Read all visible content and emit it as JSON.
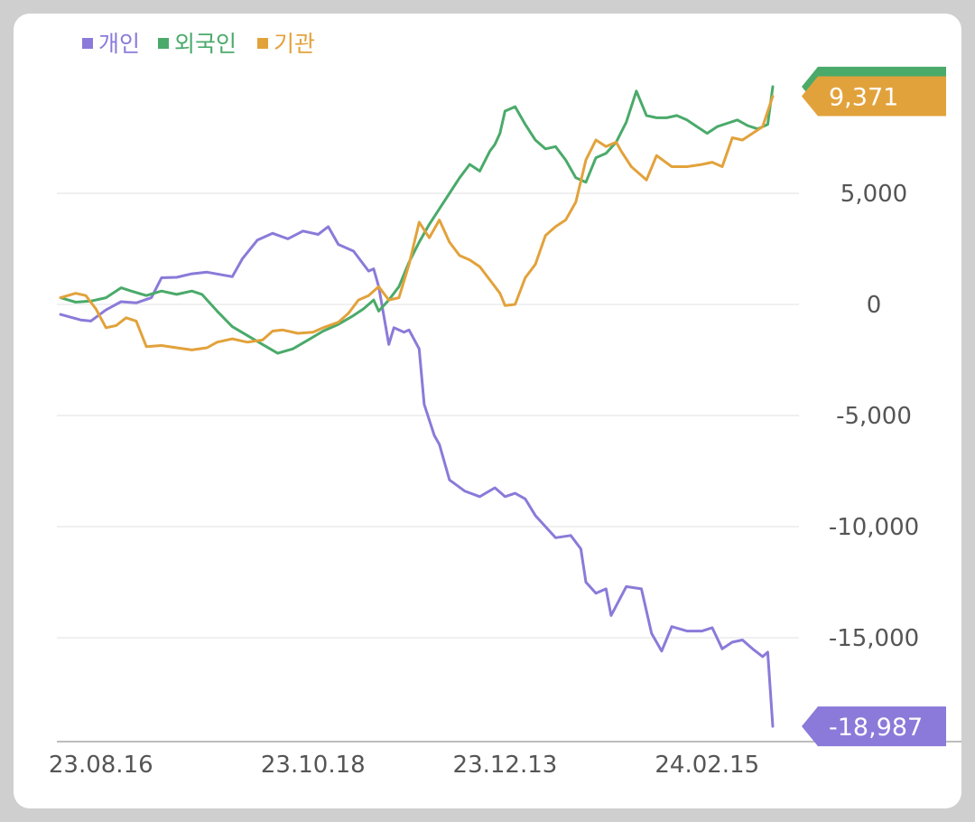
{
  "chart_data": {
    "type": "line",
    "title": "",
    "xlabel": "",
    "ylabel": "",
    "ylim": [
      -19500,
      10500
    ],
    "yticks": [
      {
        "value": 5000,
        "label": "5,000"
      },
      {
        "value": 0,
        "label": "0"
      },
      {
        "value": -5000,
        "label": "-5,000"
      },
      {
        "value": -10000,
        "label": "-10,000"
      },
      {
        "value": -15000,
        "label": "-15,000"
      }
    ],
    "x_tick_labels": [
      {
        "index": 8,
        "label": "23.08.16"
      },
      {
        "index": 50,
        "label": "23.10.18"
      },
      {
        "index": 88,
        "label": "23.12.13"
      },
      {
        "index": 128,
        "label": "24.02.15"
      }
    ],
    "grid": true,
    "legend_position": "top-left",
    "series": [
      {
        "name": "개인",
        "color": "#8b7ad9",
        "last_label": "-18,987",
        "points": [
          [
            0,
            -450
          ],
          [
            4,
            -700
          ],
          [
            6,
            -750
          ],
          [
            9,
            -250
          ],
          [
            12,
            120
          ],
          [
            15,
            70
          ],
          [
            18,
            300
          ],
          [
            20,
            1200
          ],
          [
            23,
            1220
          ],
          [
            26,
            1380
          ],
          [
            29,
            1450
          ],
          [
            32,
            1330
          ],
          [
            34,
            1250
          ],
          [
            36,
            2050
          ],
          [
            39,
            2900
          ],
          [
            42,
            3200
          ],
          [
            45,
            2950
          ],
          [
            48,
            3300
          ],
          [
            51,
            3150
          ],
          [
            53,
            3500
          ],
          [
            55,
            2700
          ],
          [
            58,
            2400
          ],
          [
            61,
            1500
          ],
          [
            62,
            1600
          ],
          [
            63,
            800
          ],
          [
            65,
            -1800
          ],
          [
            66,
            -1050
          ],
          [
            68,
            -1250
          ],
          [
            69,
            -1150
          ],
          [
            71,
            -2000
          ],
          [
            72,
            -4500
          ],
          [
            74,
            -5900
          ],
          [
            75,
            -6300
          ],
          [
            77,
            -7900
          ],
          [
            80,
            -8400
          ],
          [
            83,
            -8650
          ],
          [
            86,
            -8250
          ],
          [
            88,
            -8650
          ],
          [
            90,
            -8500
          ],
          [
            92,
            -8750
          ],
          [
            94,
            -9500
          ],
          [
            96,
            -10000
          ],
          [
            98,
            -10500
          ],
          [
            101,
            -10400
          ],
          [
            103,
            -11000
          ],
          [
            104,
            -12500
          ],
          [
            106,
            -13000
          ],
          [
            108,
            -12800
          ],
          [
            109,
            -14000
          ],
          [
            112,
            -12700
          ],
          [
            115,
            -12800
          ],
          [
            117,
            -14800
          ],
          [
            119,
            -15600
          ],
          [
            121,
            -14500
          ],
          [
            124,
            -14700
          ],
          [
            127,
            -14700
          ],
          [
            129,
            -14550
          ],
          [
            131,
            -15500
          ],
          [
            133,
            -15200
          ],
          [
            135,
            -15100
          ],
          [
            137,
            -15500
          ],
          [
            139,
            -15850
          ],
          [
            140,
            -15650
          ],
          [
            141,
            -18987
          ]
        ]
      },
      {
        "name": "외국인",
        "color": "#4aaa6a",
        "last_label": "",
        "points": [
          [
            0,
            300
          ],
          [
            3,
            100
          ],
          [
            6,
            150
          ],
          [
            9,
            300
          ],
          [
            12,
            750
          ],
          [
            14,
            600
          ],
          [
            17,
            400
          ],
          [
            20,
            600
          ],
          [
            23,
            450
          ],
          [
            26,
            600
          ],
          [
            28,
            450
          ],
          [
            31,
            -300
          ],
          [
            34,
            -1000
          ],
          [
            37,
            -1400
          ],
          [
            40,
            -1800
          ],
          [
            43,
            -2200
          ],
          [
            46,
            -2000
          ],
          [
            49,
            -1600
          ],
          [
            52,
            -1200
          ],
          [
            55,
            -900
          ],
          [
            58,
            -500
          ],
          [
            60,
            -200
          ],
          [
            62,
            200
          ],
          [
            63,
            -300
          ],
          [
            65,
            200
          ],
          [
            67,
            800
          ],
          [
            69,
            1900
          ],
          [
            71,
            2800
          ],
          [
            73,
            3600
          ],
          [
            75,
            4300
          ],
          [
            77,
            5000
          ],
          [
            79,
            5700
          ],
          [
            81,
            6300
          ],
          [
            83,
            6000
          ],
          [
            85,
            6900
          ],
          [
            86,
            7200
          ],
          [
            87,
            7700
          ],
          [
            88,
            8700
          ],
          [
            90,
            8900
          ],
          [
            92,
            8100
          ],
          [
            94,
            7400
          ],
          [
            96,
            7000
          ],
          [
            98,
            7100
          ],
          [
            100,
            6500
          ],
          [
            102,
            5700
          ],
          [
            104,
            5500
          ],
          [
            106,
            6600
          ],
          [
            108,
            6800
          ],
          [
            110,
            7300
          ],
          [
            112,
            8200
          ],
          [
            114,
            9600
          ],
          [
            116,
            8500
          ],
          [
            118,
            8400
          ],
          [
            120,
            8400
          ],
          [
            122,
            8500
          ],
          [
            124,
            8300
          ],
          [
            126,
            8000
          ],
          [
            128,
            7700
          ],
          [
            130,
            8000
          ],
          [
            132,
            8150
          ],
          [
            134,
            8300
          ],
          [
            136,
            8050
          ],
          [
            138,
            7900
          ],
          [
            140,
            8100
          ],
          [
            141,
            9800
          ]
        ]
      },
      {
        "name": "기관",
        "color": "#e2a23b",
        "last_label": "9,371",
        "points": [
          [
            0,
            300
          ],
          [
            3,
            500
          ],
          [
            5,
            400
          ],
          [
            7,
            -200
          ],
          [
            9,
            -1050
          ],
          [
            11,
            -950
          ],
          [
            13,
            -600
          ],
          [
            15,
            -750
          ],
          [
            17,
            -1900
          ],
          [
            20,
            -1850
          ],
          [
            23,
            -1950
          ],
          [
            26,
            -2050
          ],
          [
            29,
            -1950
          ],
          [
            31,
            -1700
          ],
          [
            34,
            -1550
          ],
          [
            37,
            -1700
          ],
          [
            40,
            -1600
          ],
          [
            42,
            -1200
          ],
          [
            44,
            -1150
          ],
          [
            47,
            -1300
          ],
          [
            50,
            -1250
          ],
          [
            52,
            -1050
          ],
          [
            55,
            -800
          ],
          [
            57,
            -400
          ],
          [
            59,
            200
          ],
          [
            61,
            400
          ],
          [
            63,
            800
          ],
          [
            65,
            200
          ],
          [
            67,
            300
          ],
          [
            69,
            1800
          ],
          [
            71,
            3700
          ],
          [
            73,
            3000
          ],
          [
            75,
            3800
          ],
          [
            77,
            2800
          ],
          [
            79,
            2200
          ],
          [
            81,
            2000
          ],
          [
            83,
            1700
          ],
          [
            85,
            1100
          ],
          [
            87,
            500
          ],
          [
            88,
            -50
          ],
          [
            90,
            0
          ],
          [
            92,
            1200
          ],
          [
            94,
            1800
          ],
          [
            96,
            3100
          ],
          [
            98,
            3500
          ],
          [
            100,
            3800
          ],
          [
            102,
            4600
          ],
          [
            104,
            6500
          ],
          [
            106,
            7400
          ],
          [
            108,
            7100
          ],
          [
            110,
            7300
          ],
          [
            111,
            6900
          ],
          [
            113,
            6200
          ],
          [
            116,
            5600
          ],
          [
            118,
            6700
          ],
          [
            121,
            6200
          ],
          [
            124,
            6200
          ],
          [
            127,
            6300
          ],
          [
            129,
            6400
          ],
          [
            131,
            6200
          ],
          [
            133,
            7500
          ],
          [
            135,
            7400
          ],
          [
            137,
            7700
          ],
          [
            139,
            8000
          ],
          [
            141,
            9371
          ]
        ]
      }
    ]
  }
}
